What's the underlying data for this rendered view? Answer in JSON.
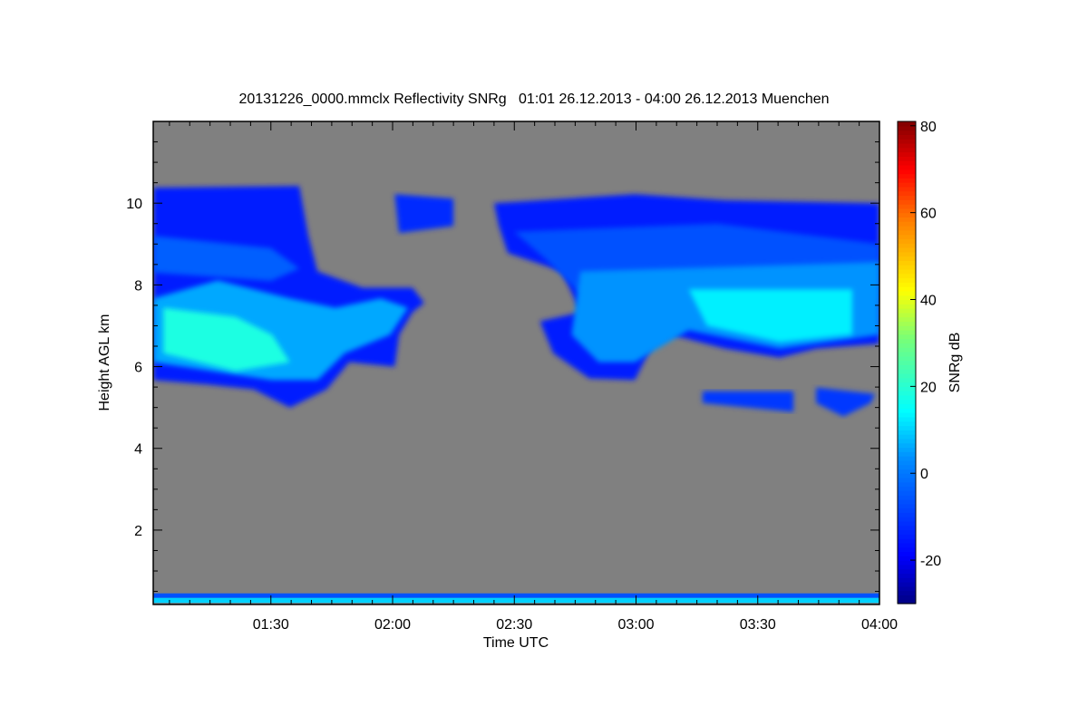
{
  "chart_data": {
    "type": "heatmap",
    "title": "20131226_0000.mmclx Reflectivity SNRg   01:01 26.12.2013 - 04:00 26.12.2013 Muenchen",
    "xlabel": "Time UTC",
    "ylabel": "Height AGL km",
    "x_units": "minutes after 00:00 UTC",
    "xlim": [
      61,
      240
    ],
    "ylim": [
      0.18,
      12.0
    ],
    "x_ticks": [
      {
        "v": 90,
        "label": "01:30"
      },
      {
        "v": 120,
        "label": "02:00"
      },
      {
        "v": 150,
        "label": "02:30"
      },
      {
        "v": 180,
        "label": "03:00"
      },
      {
        "v": 210,
        "label": "03:30"
      },
      {
        "v": 240,
        "label": "04:00"
      }
    ],
    "y_ticks": [
      {
        "v": 2,
        "label": "2"
      },
      {
        "v": 4,
        "label": "4"
      },
      {
        "v": 6,
        "label": "6"
      },
      {
        "v": 8,
        "label": "8"
      },
      {
        "v": 10,
        "label": "10"
      }
    ],
    "background_color": "#808080",
    "colorbar": {
      "label": "SNRg dB",
      "range": [
        -30,
        81
      ],
      "ticks": [
        {
          "v": -20,
          "label": "-20"
        },
        {
          "v": 0,
          "label": "0"
        },
        {
          "v": 20,
          "label": "20"
        },
        {
          "v": 40,
          "label": "40"
        },
        {
          "v": 60,
          "label": "60"
        },
        {
          "v": 80,
          "label": "80"
        }
      ]
    },
    "regions": [
      {
        "name": "cloud-a-outer",
        "snr": -14,
        "points": [
          [
            61,
            10.38
          ],
          [
            97,
            10.42
          ],
          [
            99.2,
            9.22
          ],
          [
            101.5,
            8.33
          ],
          [
            112.6,
            7.93
          ],
          [
            124.9,
            7.93
          ],
          [
            127.8,
            7.56
          ],
          [
            124.9,
            7.33
          ],
          [
            121.6,
            6.78
          ],
          [
            120.5,
            6.0
          ],
          [
            109.3,
            6.11
          ],
          [
            103.7,
            5.44
          ],
          [
            94.7,
            5.0
          ],
          [
            85.8,
            5.44
          ],
          [
            74.6,
            5.56
          ],
          [
            61,
            5.67
          ]
        ]
      },
      {
        "name": "cloud-a-patch",
        "snr": -12,
        "points": [
          [
            120.5,
            10.22
          ],
          [
            135,
            10.11
          ],
          [
            135,
            9.44
          ],
          [
            121.6,
            9.27
          ]
        ]
      },
      {
        "name": "cloud-a-mid",
        "snr": -4,
        "points": [
          [
            61,
            9.2
          ],
          [
            90,
            8.9
          ],
          [
            97,
            8.4
          ],
          [
            90,
            8.1
          ],
          [
            61,
            8.3
          ]
        ]
      },
      {
        "name": "cloud-a-inner",
        "snr": 6,
        "points": [
          [
            61,
            7.67
          ],
          [
            76.9,
            8.11
          ],
          [
            94.7,
            7.67
          ],
          [
            105.9,
            7.44
          ],
          [
            117.1,
            7.67
          ],
          [
            123.8,
            7.44
          ],
          [
            119.4,
            6.78
          ],
          [
            108.2,
            6.33
          ],
          [
            101.5,
            5.67
          ],
          [
            90.3,
            5.67
          ],
          [
            61,
            6.11
          ]
        ]
      },
      {
        "name": "cloud-a-core",
        "snr": 18,
        "points": [
          [
            63.5,
            7.44
          ],
          [
            81.3,
            7.22
          ],
          [
            90.3,
            6.78
          ],
          [
            94.7,
            6.11
          ],
          [
            81.3,
            5.89
          ],
          [
            63.5,
            6.33
          ]
        ]
      },
      {
        "name": "cloud-b-outer",
        "snr": -14,
        "points": [
          [
            145,
            10.0
          ],
          [
            179.7,
            10.22
          ],
          [
            202,
            10.07
          ],
          [
            240,
            10.0
          ],
          [
            240,
            6.56
          ],
          [
            224.4,
            6.44
          ],
          [
            215.4,
            6.22
          ],
          [
            202,
            6.44
          ],
          [
            188.6,
            6.78
          ],
          [
            184.2,
            6.56
          ],
          [
            179.7,
            5.67
          ],
          [
            168.5,
            5.71
          ],
          [
            159.6,
            6.33
          ],
          [
            156.3,
            7.11
          ],
          [
            166.3,
            7.33
          ],
          [
            161.8,
            8.33
          ],
          [
            148.4,
            8.78
          ],
          [
            146.2,
            9.44
          ]
        ]
      },
      {
        "name": "cloud-b-mid",
        "snr": -6,
        "points": [
          [
            150,
            9.3
          ],
          [
            200,
            9.5
          ],
          [
            240,
            9.0
          ],
          [
            240,
            7.6
          ],
          [
            166,
            7.8
          ],
          [
            158,
            8.6
          ]
        ]
      },
      {
        "name": "cloud-b-inner",
        "snr": 4,
        "points": [
          [
            166.3,
            8.33
          ],
          [
            240,
            8.56
          ],
          [
            240,
            6.78
          ],
          [
            215.4,
            6.44
          ],
          [
            193,
            6.89
          ],
          [
            179.7,
            6.11
          ],
          [
            170.8,
            6.11
          ],
          [
            164.1,
            6.78
          ]
        ]
      },
      {
        "name": "cloud-b-core",
        "snr": 13,
        "points": [
          [
            193,
            7.89
          ],
          [
            233.3,
            7.89
          ],
          [
            233.3,
            6.78
          ],
          [
            215.4,
            6.6
          ],
          [
            197.5,
            7.0
          ]
        ]
      },
      {
        "name": "band-1",
        "snr": -10,
        "points": [
          [
            196.4,
            5.4
          ],
          [
            218.8,
            5.4
          ],
          [
            218.8,
            4.89
          ],
          [
            196.4,
            5.11
          ]
        ]
      },
      {
        "name": "band-2",
        "snr": -10,
        "points": [
          [
            224.4,
            5.49
          ],
          [
            238.9,
            5.33
          ],
          [
            237.8,
            5.11
          ],
          [
            231.1,
            4.78
          ],
          [
            224.4,
            5.11
          ]
        ]
      },
      {
        "name": "ground-clutter-upper",
        "snr": -6,
        "points": [
          [
            61,
            0.45
          ],
          [
            240,
            0.45
          ],
          [
            240,
            0.34
          ],
          [
            61,
            0.34
          ]
        ]
      },
      {
        "name": "ground-clutter-lower",
        "snr": 10,
        "points": [
          [
            61,
            0.34
          ],
          [
            240,
            0.34
          ],
          [
            240,
            0.22
          ],
          [
            61,
            0.22
          ]
        ]
      }
    ]
  }
}
